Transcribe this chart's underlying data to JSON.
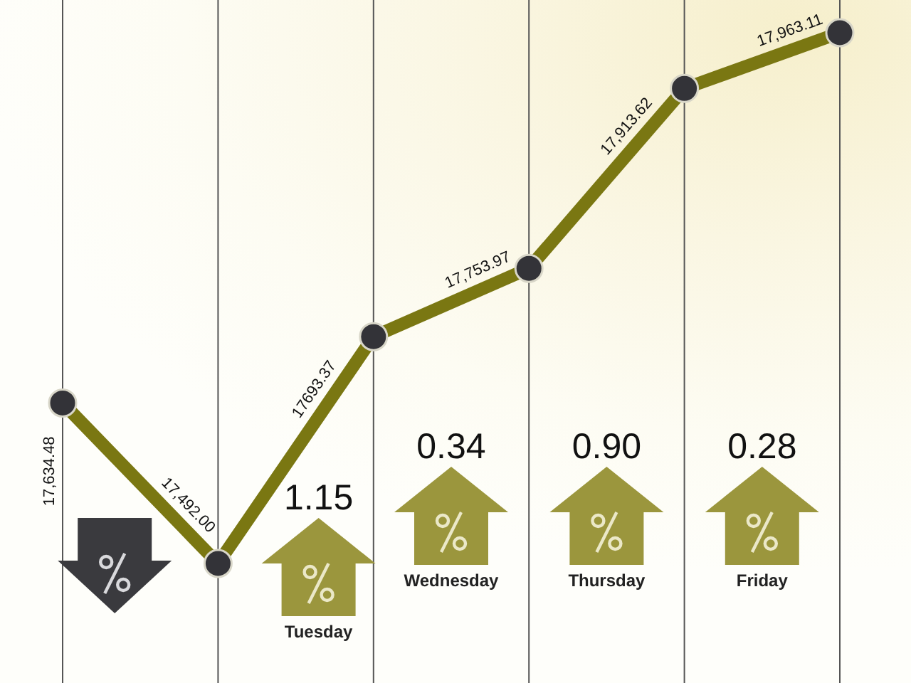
{
  "chart_data": {
    "type": "line",
    "categories": [
      null,
      null,
      null,
      null,
      null,
      null
    ],
    "values": [
      17634.48,
      17492.0,
      17693.37,
      17753.97,
      17913.62,
      17963.11
    ],
    "value_labels": [
      "17,634.48",
      "17,492.00",
      "17693.37",
      "17,753.97",
      "17,913.62",
      "17,963.11"
    ],
    "color": "#7a7712",
    "marker": "circle",
    "line_style": "solid",
    "grid": "x",
    "annotations": [
      "1.15",
      "Tuesday",
      "0.34",
      "Wednesday",
      "0.90",
      "Thursday",
      "0.28",
      "Friday"
    ]
  }
}
